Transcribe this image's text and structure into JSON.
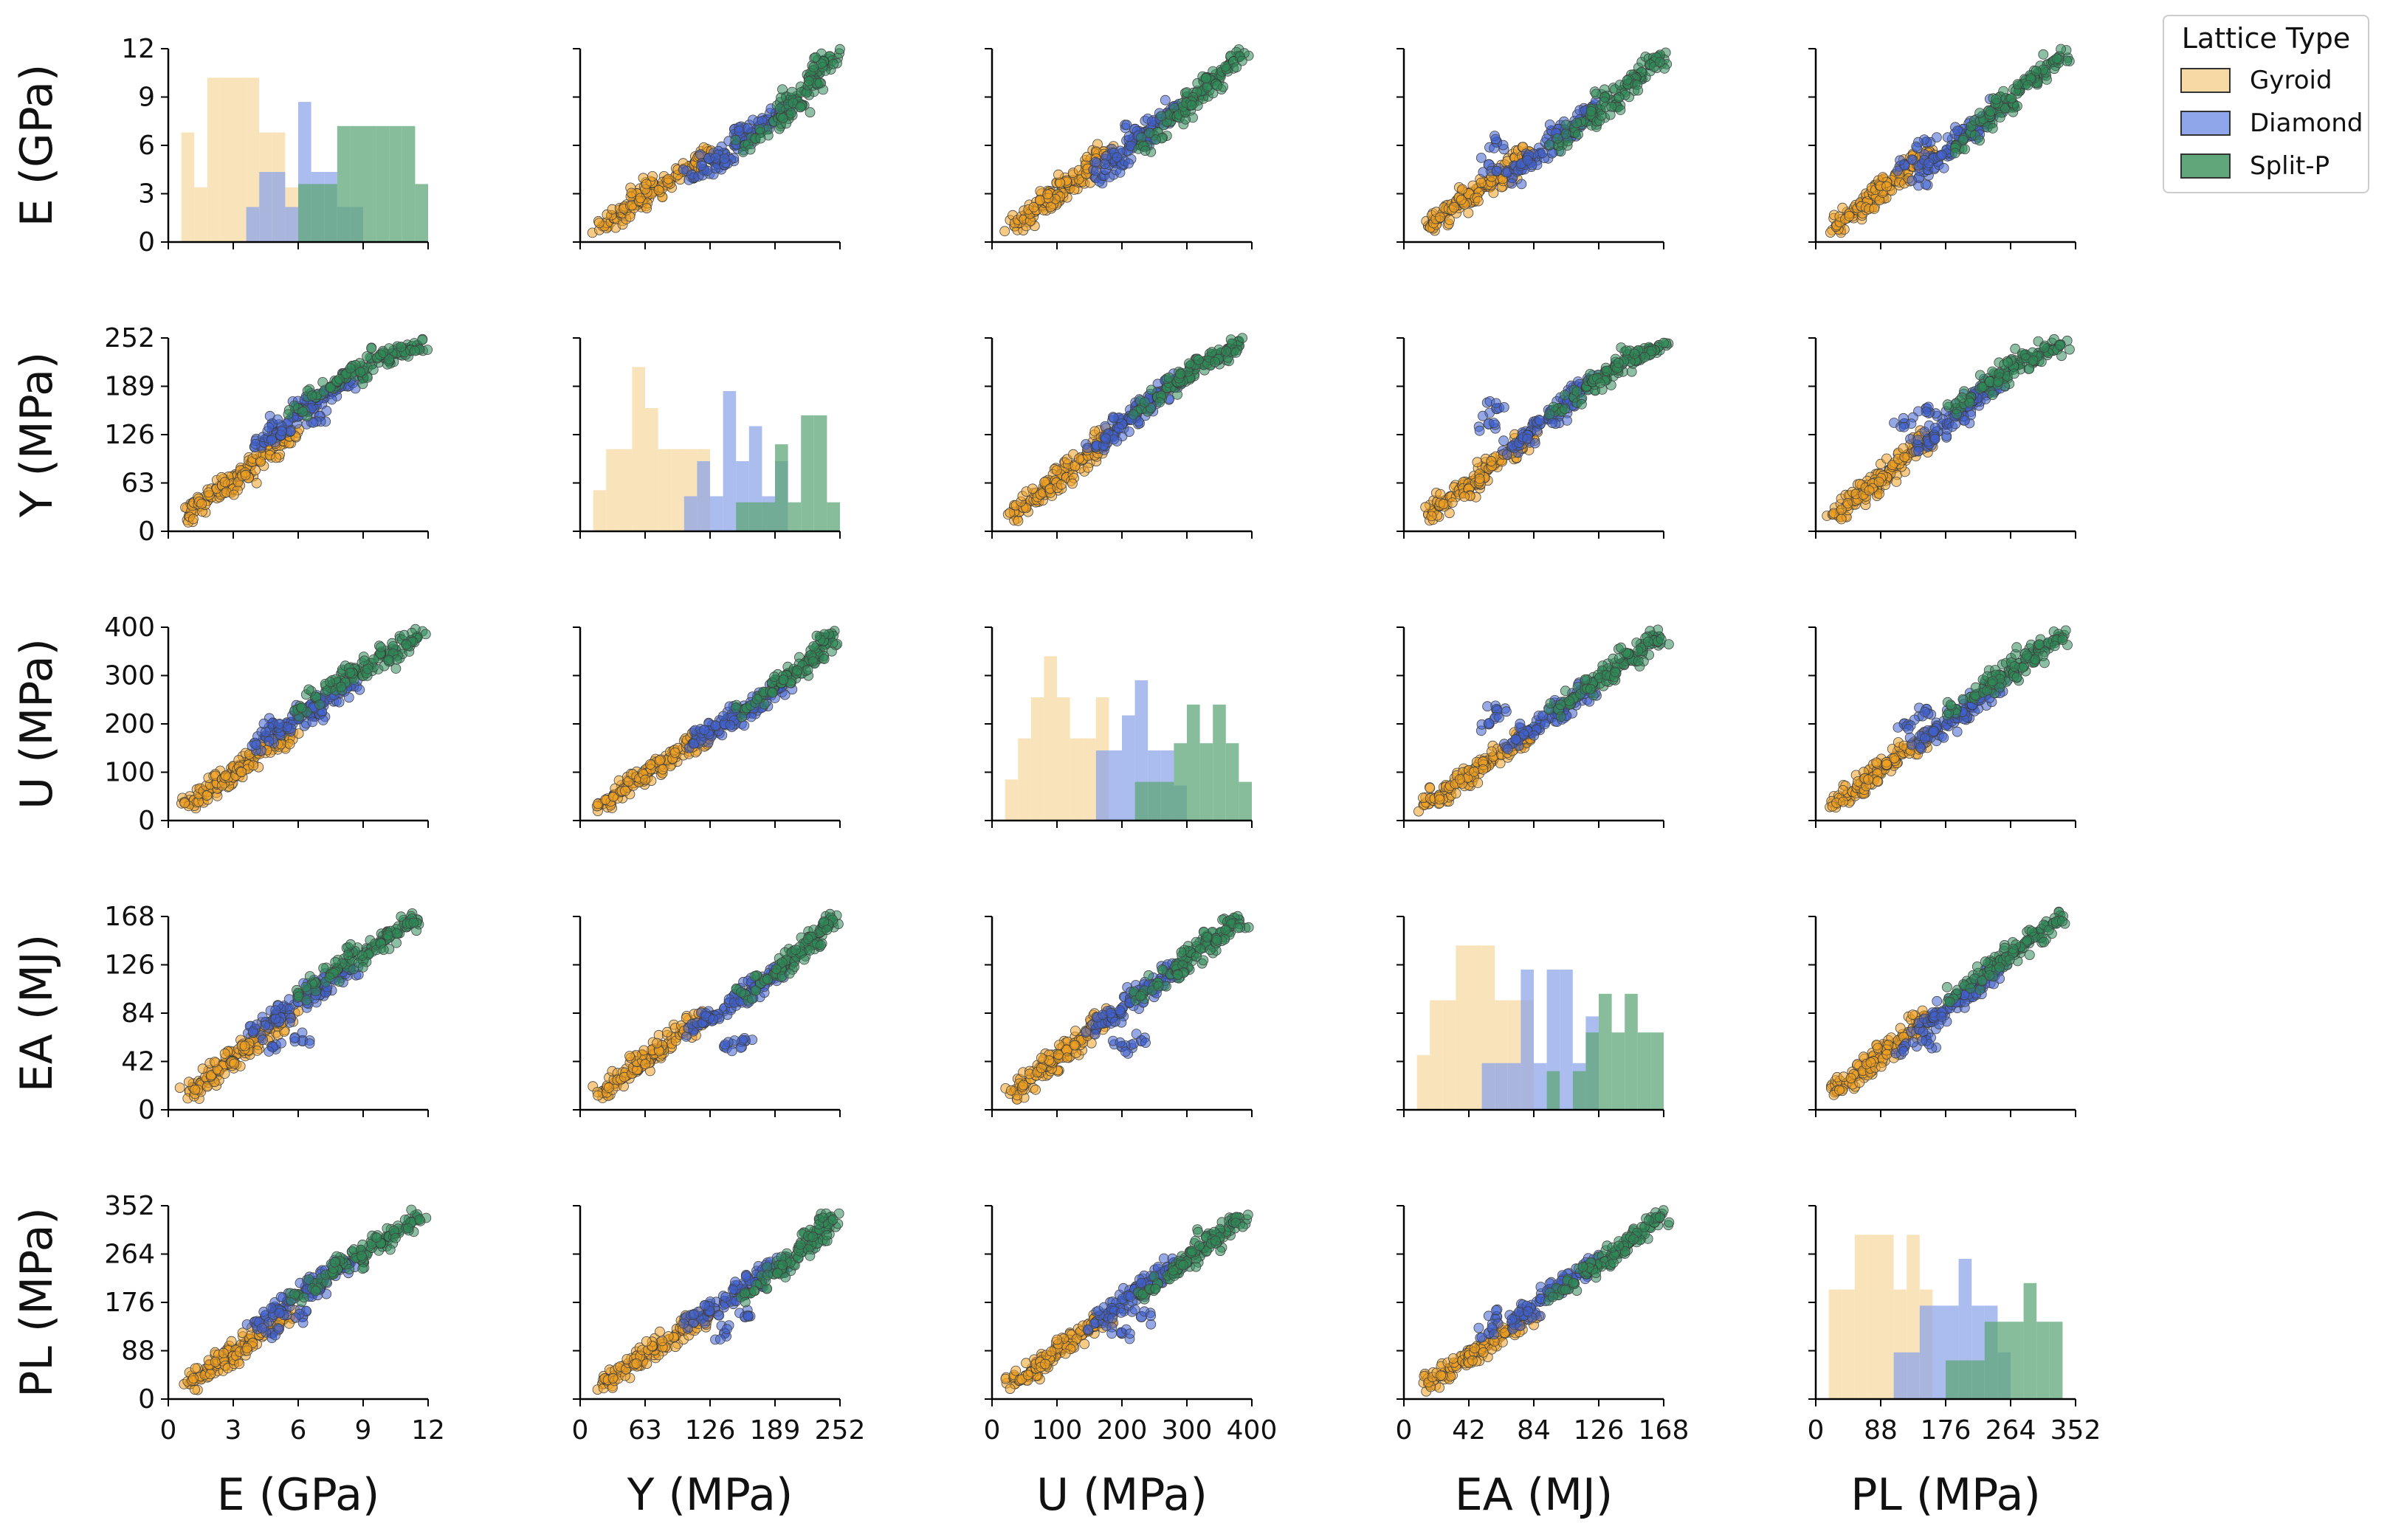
{
  "chart_data": {
    "type": "scatter",
    "layout": "pairplot",
    "variables": [
      {
        "name": "E",
        "label": "E (GPa)",
        "range": [
          0,
          12
        ],
        "ticks": [
          "0",
          "3",
          "6",
          "9",
          "12"
        ],
        "tick_values": [
          0,
          3,
          6,
          9,
          12
        ]
      },
      {
        "name": "Y",
        "label": "Y (MPa)",
        "range": [
          0,
          252
        ],
        "ticks": [
          "0",
          "63",
          "126",
          "189",
          "252"
        ],
        "tick_values": [
          0,
          63,
          126,
          189,
          252
        ]
      },
      {
        "name": "U",
        "label": "U (MPa)",
        "range": [
          0,
          400
        ],
        "ticks": [
          "0",
          "100",
          "200",
          "300",
          "400"
        ],
        "tick_values": [
          0,
          100,
          200,
          300,
          400
        ]
      },
      {
        "name": "EA",
        "label": "EA (MJ)",
        "range": [
          0,
          168
        ],
        "ticks": [
          "0",
          "42",
          "84",
          "126",
          "168"
        ],
        "tick_values": [
          0,
          42,
          84,
          126,
          168
        ]
      },
      {
        "name": "PL",
        "label": "PL (MPa)",
        "range": [
          0,
          352
        ],
        "ticks": [
          "0",
          "88",
          "176",
          "264",
          "352"
        ],
        "tick_values": [
          0,
          88,
          176,
          264,
          352
        ]
      }
    ],
    "legend": {
      "title": "Lattice Type",
      "placement": "top-right",
      "entries": [
        {
          "name": "Gyroid",
          "color": "#f0a020",
          "hist_color": "#f7d9a3"
        },
        {
          "name": "Diamond",
          "color": "#4060d0",
          "hist_color": "#8fa6ea"
        },
        {
          "name": "Split-P",
          "color": "#2e8b57",
          "hist_color": "#5fa77a"
        }
      ]
    },
    "series": [
      {
        "name": "Gyroid",
        "points": [
          [
            1.0,
            22,
            35,
            16,
            28
          ],
          [
            1.2,
            26,
            42,
            19,
            34
          ],
          [
            1.5,
            33,
            52,
            23,
            42
          ],
          [
            1.8,
            40,
            60,
            27,
            50
          ],
          [
            2.0,
            45,
            68,
            30,
            56
          ],
          [
            2.3,
            52,
            78,
            35,
            65
          ],
          [
            2.6,
            58,
            88,
            40,
            74
          ],
          [
            2.9,
            65,
            98,
            44,
            82
          ],
          [
            3.2,
            72,
            108,
            49,
            91
          ],
          [
            3.5,
            80,
            118,
            54,
            100
          ],
          [
            3.8,
            86,
            128,
            58,
            108
          ],
          [
            4.1,
            93,
            138,
            63,
            117
          ],
          [
            4.4,
            100,
            148,
            67,
            125
          ],
          [
            4.7,
            106,
            155,
            71,
            132
          ],
          [
            5.0,
            112,
            162,
            75,
            139
          ],
          [
            5.3,
            118,
            168,
            78,
            145
          ],
          [
            5.6,
            124,
            172,
            81,
            150
          ],
          [
            2.5,
            60,
            85,
            38,
            70
          ],
          [
            3.0,
            55,
            90,
            42,
            78
          ],
          [
            3.7,
            70,
            115,
            52,
            96
          ]
        ]
      },
      {
        "name": "Diamond",
        "points": [
          [
            4.0,
            110,
            160,
            70,
            140
          ],
          [
            4.5,
            120,
            175,
            76,
            152
          ],
          [
            5.0,
            130,
            188,
            82,
            165
          ],
          [
            5.5,
            140,
            200,
            88,
            178
          ],
          [
            6.0,
            150,
            212,
            94,
            190
          ],
          [
            6.4,
            158,
            224,
            99,
            200
          ],
          [
            6.8,
            166,
            236,
            104,
            210
          ],
          [
            7.2,
            174,
            248,
            109,
            220
          ],
          [
            7.6,
            182,
            260,
            114,
            230
          ],
          [
            8.0,
            190,
            270,
            118,
            240
          ],
          [
            8.4,
            196,
            280,
            122,
            248
          ],
          [
            5.2,
            125,
            185,
            80,
            160
          ],
          [
            6.2,
            160,
            230,
            60,
            150
          ],
          [
            7.0,
            150,
            220,
            100,
            200
          ],
          [
            4.8,
            140,
            200,
            55,
            120
          ],
          [
            6.6,
            170,
            240,
            106,
            212
          ]
        ]
      },
      {
        "name": "Split-P",
        "points": [
          [
            6.0,
            160,
            230,
            100,
            190
          ],
          [
            6.8,
            175,
            255,
            110,
            210
          ],
          [
            7.5,
            188,
            275,
            118,
            228
          ],
          [
            8.2,
            200,
            295,
            127,
            246
          ],
          [
            8.8,
            210,
            310,
            134,
            262
          ],
          [
            9.4,
            218,
            325,
            141,
            276
          ],
          [
            10.0,
            226,
            340,
            148,
            290
          ],
          [
            10.5,
            232,
            352,
            154,
            302
          ],
          [
            11.0,
            238,
            365,
            159,
            314
          ],
          [
            11.5,
            242,
            380,
            165,
            330
          ],
          [
            9.0,
            200,
            300,
            130,
            250
          ],
          [
            10.2,
            222,
            330,
            150,
            296
          ],
          [
            7.8,
            195,
            285,
            122,
            236
          ],
          [
            9.8,
            230,
            345,
            145,
            284
          ],
          [
            8.5,
            215,
            305,
            137,
            268
          ],
          [
            11.2,
            236,
            372,
            162,
            322
          ]
        ]
      }
    ]
  }
}
